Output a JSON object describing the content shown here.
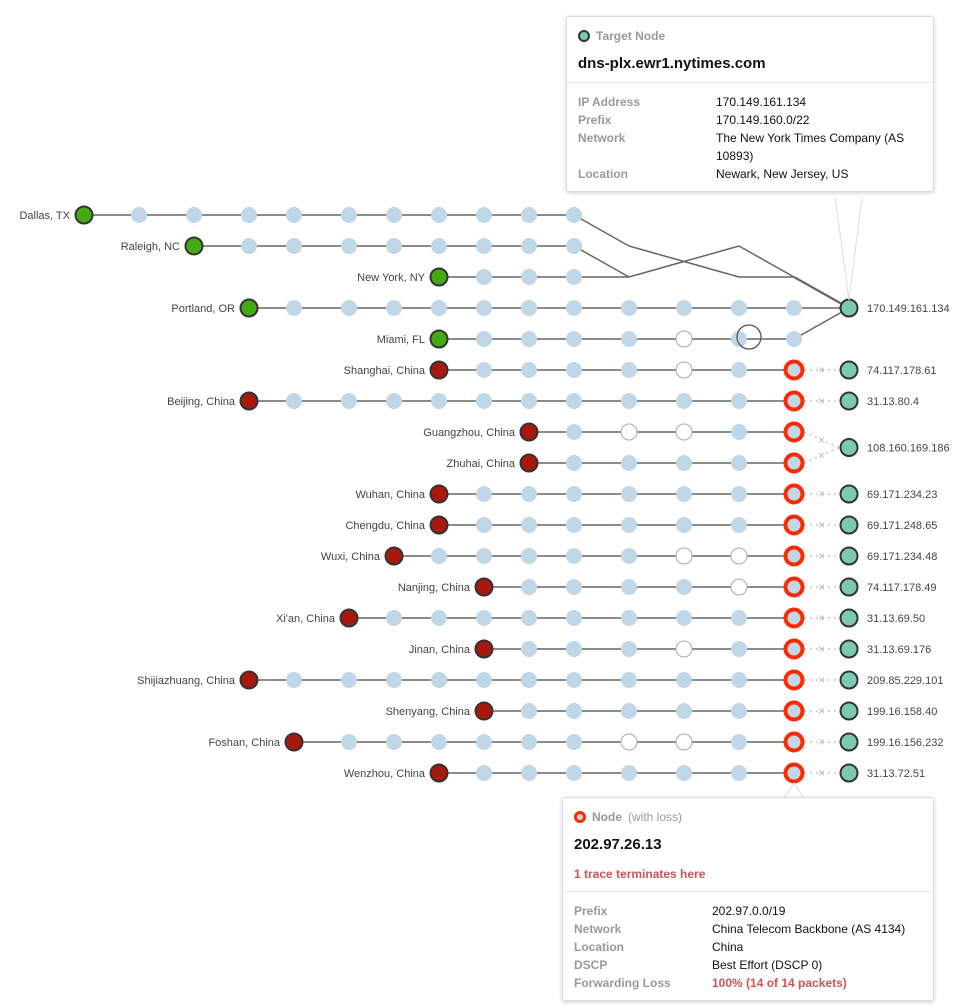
{
  "colors": {
    "hop": "#c0d7e8",
    "source_ok": "#44aa11",
    "source_bad": "#a8180c",
    "target": "#7cc9b3",
    "loss": "#ff2a00",
    "edge": "#666666",
    "noresp": "#ffffff"
  },
  "target_main": "170.149.161.134",
  "traces": [
    {
      "source": "Dallas, TX",
      "status": "ok",
      "hops": [
        "ok",
        "ok",
        "ok",
        "ok",
        "ok",
        "ok",
        "ok",
        "ok",
        "ok",
        "ok"
      ]
    },
    {
      "source": "Raleigh, NC",
      "status": "ok",
      "hops": [
        "ok",
        "ok",
        "ok",
        "ok",
        "ok",
        "ok",
        "ok",
        "ok"
      ]
    },
    {
      "source": "New York, NY",
      "status": "ok",
      "hops": [
        "ok",
        "ok",
        "ok"
      ]
    },
    {
      "source": "Portland, OR",
      "status": "ok",
      "hops": [
        "ok",
        "ok",
        "ok",
        "ok",
        "ok",
        "ok",
        "ok",
        "ok",
        "ok",
        "ok",
        "ok"
      ]
    },
    {
      "source": "Miami, FL",
      "status": "ok",
      "hops": [
        "ok",
        "ok",
        "ok",
        "ok",
        "noresp",
        "loop",
        "ok"
      ]
    },
    {
      "source": "Shanghai, China",
      "status": "bad",
      "hops": [
        "ok",
        "ok",
        "ok",
        "ok",
        "noresp",
        "ok",
        "loss"
      ],
      "target": "74.117.178.61"
    },
    {
      "source": "Beijing, China",
      "status": "bad",
      "hops": [
        "ok",
        "ok",
        "ok",
        "ok",
        "ok",
        "ok",
        "ok",
        "ok",
        "ok",
        "ok",
        "loss"
      ],
      "target": "31.13.80.4"
    },
    {
      "source": "Guangzhou, China",
      "status": "bad",
      "hops": [
        "ok",
        "noresp",
        "noresp",
        "ok",
        "loss"
      ],
      "target": "108.160.169.186"
    },
    {
      "source": "Zhuhai, China",
      "status": "bad",
      "hops": [
        "ok",
        "ok",
        "ok",
        "ok",
        "loss"
      ],
      "target": "108.160.169.186"
    },
    {
      "source": "Wuhan, China",
      "status": "bad",
      "hops": [
        "ok",
        "ok",
        "ok",
        "ok",
        "ok",
        "ok",
        "loss"
      ],
      "target": "69.171.234.23"
    },
    {
      "source": "Chengdu, China",
      "status": "bad",
      "hops": [
        "ok",
        "ok",
        "ok",
        "ok",
        "ok",
        "ok",
        "loss"
      ],
      "target": "69.171.248.65"
    },
    {
      "source": "Wuxi, China",
      "status": "bad",
      "hops": [
        "ok",
        "ok",
        "ok",
        "ok",
        "ok",
        "noresp",
        "noresp",
        "loss"
      ],
      "target": "69.171.234.48"
    },
    {
      "source": "Nanjing, China",
      "status": "bad",
      "hops": [
        "ok",
        "ok",
        "ok",
        "ok",
        "noresp",
        "loss"
      ],
      "target": "74.117.178.49"
    },
    {
      "source": "Xi'an, China",
      "status": "bad",
      "hops": [
        "ok",
        "ok",
        "ok",
        "ok",
        "ok",
        "ok",
        "ok",
        "ok",
        "loss"
      ],
      "target": "31.13.69.50"
    },
    {
      "source": "Jinan, China",
      "status": "bad",
      "hops": [
        "ok",
        "ok",
        "ok",
        "noresp",
        "ok",
        "loss"
      ],
      "target": "31.13.69.176"
    },
    {
      "source": "Shijiazhuang, China",
      "status": "bad",
      "hops": [
        "ok",
        "ok",
        "ok",
        "ok",
        "ok",
        "ok",
        "ok",
        "ok",
        "ok",
        "ok",
        "loss"
      ],
      "target": "209.85.229.101"
    },
    {
      "source": "Shenyang, China",
      "status": "bad",
      "hops": [
        "ok",
        "ok",
        "ok",
        "ok",
        "ok",
        "loss"
      ],
      "target": "199.16.158.40"
    },
    {
      "source": "Foshan, China",
      "status": "bad",
      "hops": [
        "ok",
        "ok",
        "ok",
        "ok",
        "ok",
        "ok",
        "noresp",
        "noresp",
        "ok",
        "loss"
      ],
      "target": "199.16.156.232"
    },
    {
      "source": "Wenzhou, China",
      "status": "bad",
      "hops": [
        "ok",
        "ok",
        "ok",
        "ok",
        "ok",
        "ok",
        "loss"
      ],
      "target": "31.13.72.51"
    }
  ],
  "tooltip_target": {
    "kind": "Target Node",
    "title": "dns-plx.ewr1.nytimes.com",
    "rows": [
      {
        "k": "IP Address",
        "v": "170.149.161.134"
      },
      {
        "k": "Prefix",
        "v": "170.149.160.0/22"
      },
      {
        "k": "Network",
        "v": "The New York Times Company (AS 10893)"
      },
      {
        "k": "Location",
        "v": "Newark, New Jersey, US"
      }
    ]
  },
  "tooltip_loss": {
    "kind": "Node",
    "kind_sub": "(with loss)",
    "title": "202.97.26.13",
    "warning": "1 trace terminates here",
    "rows": [
      {
        "k": "Prefix",
        "v": "202.97.0.0/19"
      },
      {
        "k": "Network",
        "v": "China Telecom Backbone (AS 4134)"
      },
      {
        "k": "Location",
        "v": "China"
      },
      {
        "k": "DSCP",
        "v": "Best Effort (DSCP 0)"
      },
      {
        "k": "Forwarding Loss",
        "v": "100% (14 of 14 packets)"
      }
    ]
  }
}
